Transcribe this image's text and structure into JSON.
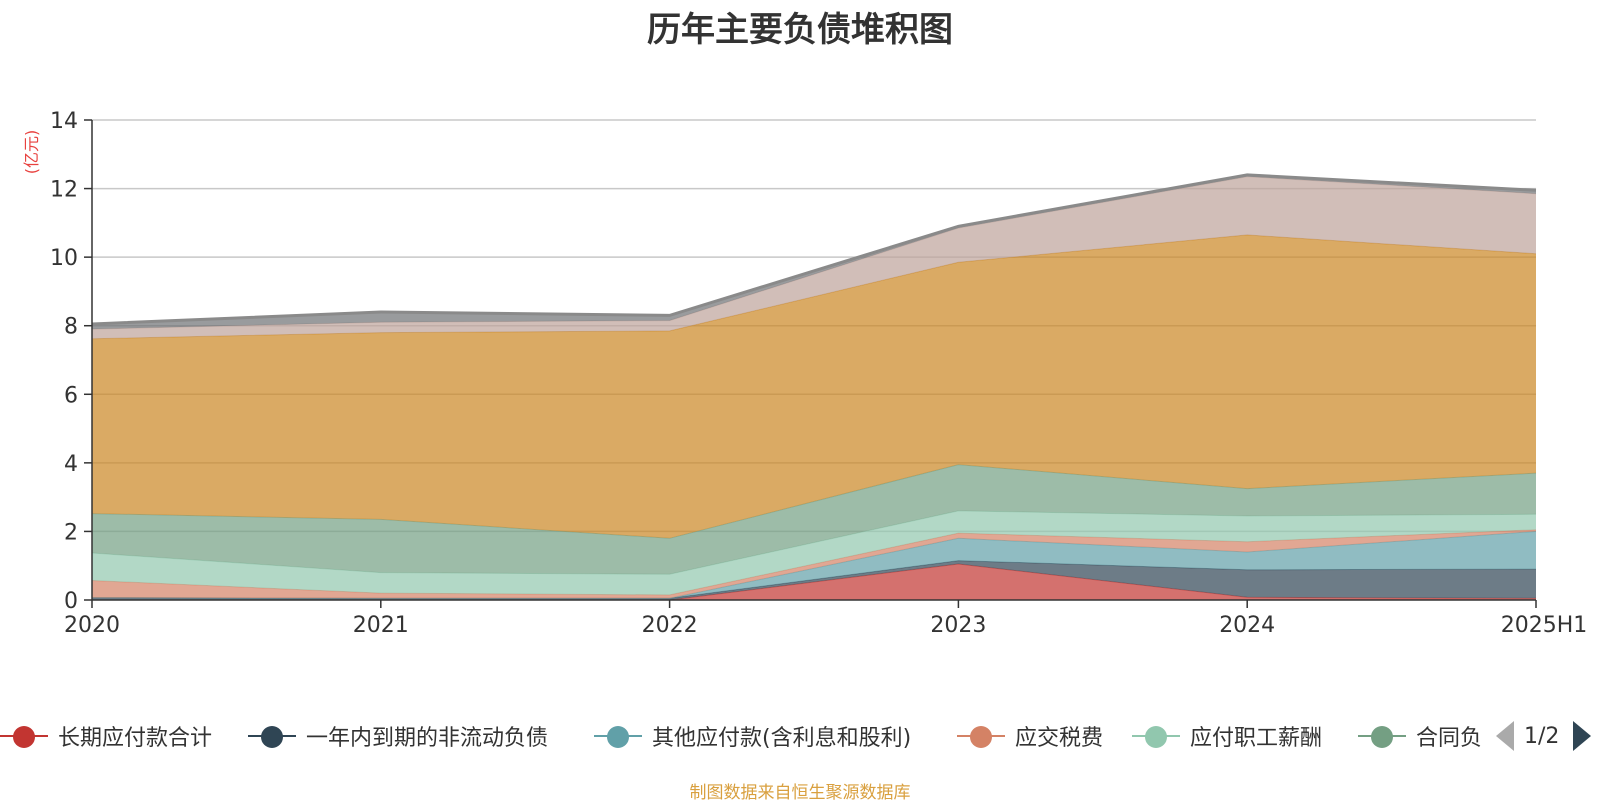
{
  "title": "历年主要负债堆积图",
  "unit_label": "(亿元)",
  "source_note": "制图数据来自恒生聚源数据库",
  "legend_pager": {
    "text": "1/2"
  },
  "chart_data": {
    "type": "area",
    "stacked": true,
    "title": "历年主要负债堆积图",
    "ylabel": "(亿元)",
    "categories": [
      "2020",
      "2021",
      "2022",
      "2023",
      "2024",
      "2025H1"
    ],
    "ylim": [
      0,
      14
    ],
    "yticks": [
      0,
      2,
      4,
      6,
      8,
      10,
      12,
      14
    ],
    "grid": true,
    "legend_position": "bottom",
    "series": [
      {
        "name": "长期应付款合计",
        "color": "#c23531",
        "values": [
          0.0,
          0.0,
          0.0,
          1.05,
          0.08,
          0.05
        ]
      },
      {
        "name": "一年内到期的非流动负债",
        "color": "#2f4554",
        "values": [
          0.07,
          0.05,
          0.05,
          0.1,
          0.8,
          0.85
        ]
      },
      {
        "name": "其他应付款(含利息和股利)",
        "color": "#61a0a8",
        "values": [
          0.0,
          0.0,
          0.0,
          0.65,
          0.52,
          1.1
        ]
      },
      {
        "name": "应交税费",
        "color": "#d48265",
        "values": [
          0.5,
          0.15,
          0.1,
          0.15,
          0.3,
          0.05
        ]
      },
      {
        "name": "应付职工薪酬",
        "color": "#91c7ae",
        "values": [
          0.8,
          0.6,
          0.6,
          0.65,
          0.75,
          0.45
        ]
      },
      {
        "name": "合同负债",
        "color": "#749f83",
        "values": [
          1.15,
          1.55,
          1.05,
          1.35,
          0.8,
          1.2
        ]
      },
      {
        "name": "",
        "color": "#ca8622",
        "values": [
          5.1,
          5.45,
          6.05,
          5.9,
          7.4,
          6.4
        ]
      },
      {
        "name": "",
        "color": "#bda29a",
        "values": [
          0.28,
          0.3,
          0.3,
          1.0,
          1.7,
          1.75
        ]
      },
      {
        "name": "",
        "color": "#6e7074",
        "values": [
          0.15,
          0.3,
          0.15,
          0.05,
          0.05,
          0.1
        ]
      }
    ]
  }
}
